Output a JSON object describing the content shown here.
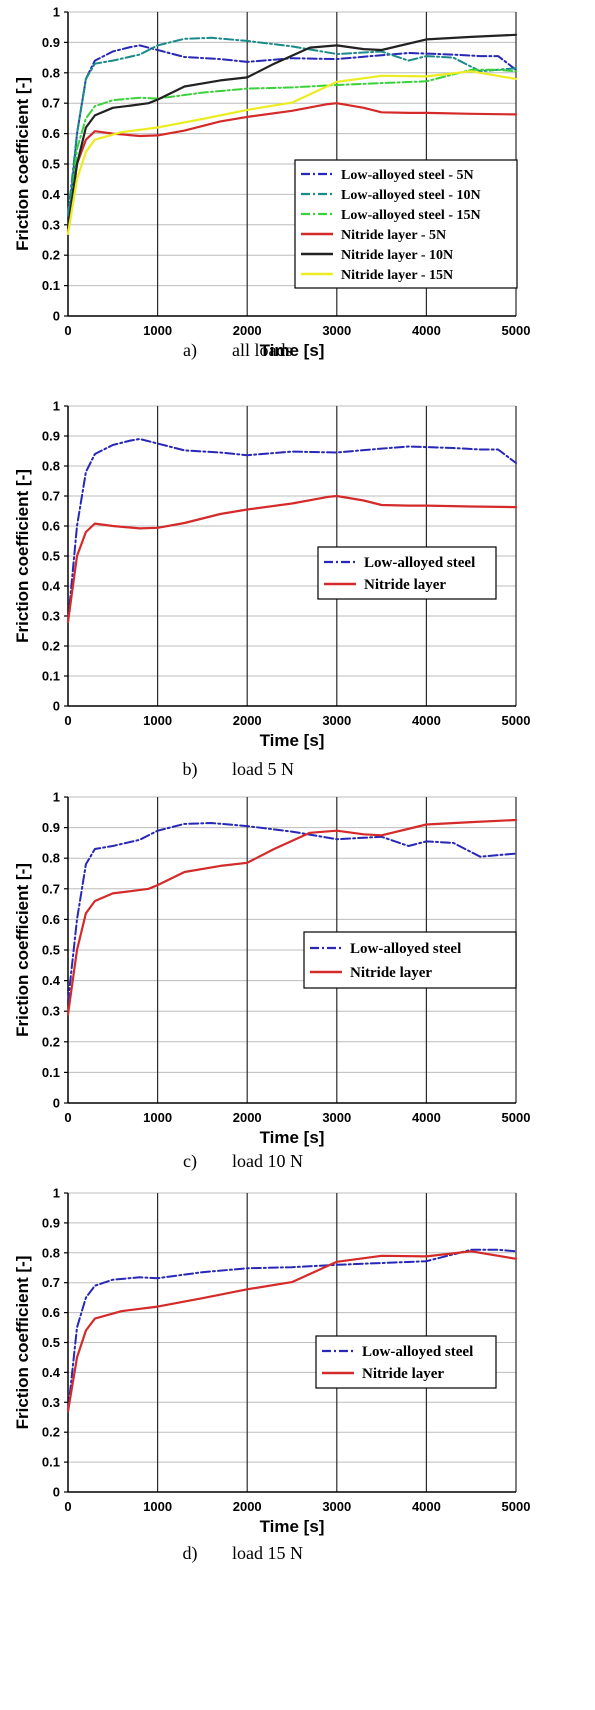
{
  "chart_data": [
    {
      "type": "line",
      "xlabel": "Time [s]",
      "ylabel": "Friction coefficient [-]",
      "xlim": [
        0,
        5000
      ],
      "ylim": [
        0,
        1
      ],
      "x_ticks": [
        "0",
        "1000",
        "2000",
        "3000",
        "4000",
        "5000"
      ],
      "y_ticks": [
        "0",
        "0.1",
        "0.2",
        "0.3",
        "0.4",
        "0.5",
        "0.6",
        "0.7",
        "0.8",
        "0.9",
        "1"
      ],
      "grid": true,
      "legend_position": "right",
      "caption_letter": "a)",
      "caption_text": "all loads",
      "series": [
        {
          "name": "Low-alloyed steel - 5N",
          "color": "#2727b8",
          "dash": "dashdot",
          "x": [
            0,
            100,
            200,
            300,
            500,
            700,
            800,
            1000,
            1300,
            1700,
            2000,
            2500,
            3000,
            3500,
            3800,
            4000,
            4300,
            4600,
            4800,
            5000
          ],
          "y": [
            0.28,
            0.6,
            0.78,
            0.84,
            0.87,
            0.885,
            0.89,
            0.875,
            0.852,
            0.845,
            0.836,
            0.848,
            0.845,
            0.858,
            0.865,
            0.863,
            0.86,
            0.855,
            0.855,
            0.81
          ]
        },
        {
          "name": "Low-alloyed steel - 10N",
          "color": "#1b8a8a",
          "dash": "dashdot",
          "x": [
            0,
            100,
            200,
            300,
            500,
            800,
            1000,
            1300,
            1600,
            2000,
            2500,
            3000,
            3500,
            3800,
            4000,
            4300,
            4600,
            4800,
            5000
          ],
          "y": [
            0.33,
            0.6,
            0.78,
            0.83,
            0.84,
            0.86,
            0.89,
            0.912,
            0.915,
            0.905,
            0.887,
            0.862,
            0.87,
            0.84,
            0.855,
            0.85,
            0.805,
            0.81,
            0.815
          ]
        },
        {
          "name": "Low-alloyed steel - 15N",
          "color": "#3ad23a",
          "dash": "dashdot",
          "x": [
            0,
            100,
            200,
            300,
            500,
            800,
            1000,
            1500,
            2000,
            2500,
            3000,
            3500,
            4000,
            4500,
            4800,
            5000
          ],
          "y": [
            0.27,
            0.55,
            0.65,
            0.69,
            0.71,
            0.718,
            0.715,
            0.735,
            0.748,
            0.752,
            0.76,
            0.766,
            0.772,
            0.81,
            0.81,
            0.805
          ]
        },
        {
          "name": "Nitride layer - 5N",
          "color": "#d42a2a",
          "dash": "solid",
          "x": [
            0,
            100,
            200,
            300,
            500,
            800,
            1000,
            1300,
            1700,
            2000,
            2500,
            2900,
            3000,
            3300,
            3500,
            3800,
            4000,
            4500,
            5000
          ],
          "y": [
            0.28,
            0.5,
            0.58,
            0.608,
            0.6,
            0.592,
            0.594,
            0.61,
            0.64,
            0.655,
            0.675,
            0.697,
            0.7,
            0.685,
            0.67,
            0.668,
            0.668,
            0.665,
            0.663
          ]
        },
        {
          "name": "Nitride layer - 10N",
          "color": "#222222",
          "dash": "solid",
          "x": [
            0,
            100,
            200,
            300,
            500,
            700,
            900,
            1000,
            1300,
            1700,
            2000,
            2300,
            2700,
            3000,
            3300,
            3500,
            4000,
            4500,
            5000
          ],
          "y": [
            0.29,
            0.5,
            0.62,
            0.66,
            0.685,
            0.692,
            0.7,
            0.712,
            0.755,
            0.775,
            0.785,
            0.83,
            0.883,
            0.89,
            0.878,
            0.875,
            0.91,
            0.918,
            0.925
          ]
        },
        {
          "name": "Nitride layer - 15N",
          "color": "#ecec22",
          "dash": "solid",
          "x": [
            0,
            100,
            200,
            300,
            600,
            1000,
            1500,
            2000,
            2500,
            3000,
            3500,
            4000,
            4500,
            5000
          ],
          "y": [
            0.27,
            0.45,
            0.54,
            0.58,
            0.605,
            0.62,
            0.648,
            0.678,
            0.702,
            0.77,
            0.79,
            0.788,
            0.805,
            0.78
          ]
        }
      ]
    },
    {
      "type": "line",
      "xlabel": "Time [s]",
      "ylabel": "Friction coefficient [-]",
      "xlim": [
        0,
        5000
      ],
      "ylim": [
        0,
        1
      ],
      "x_ticks": [
        "0",
        "1000",
        "2000",
        "3000",
        "4000",
        "5000"
      ],
      "y_ticks": [
        "0",
        "0.1",
        "0.2",
        "0.3",
        "0.4",
        "0.5",
        "0.6",
        "0.7",
        "0.8",
        "0.9",
        "1"
      ],
      "grid": true,
      "legend_position": "right",
      "caption_letter": "b)",
      "caption_text": "load 5 N",
      "series": [
        {
          "name": "Low-alloyed steel",
          "color": "#2727b8",
          "dash": "dashdot",
          "x": [
            0,
            100,
            200,
            300,
            500,
            700,
            800,
            1000,
            1300,
            1700,
            2000,
            2500,
            3000,
            3500,
            3800,
            4000,
            4300,
            4600,
            4800,
            5000
          ],
          "y": [
            0.28,
            0.6,
            0.78,
            0.84,
            0.87,
            0.885,
            0.89,
            0.875,
            0.852,
            0.845,
            0.836,
            0.848,
            0.845,
            0.858,
            0.865,
            0.863,
            0.86,
            0.855,
            0.855,
            0.81
          ]
        },
        {
          "name": "Nitride layer",
          "color": "#d42a2a",
          "dash": "solid",
          "x": [
            0,
            100,
            200,
            300,
            500,
            800,
            1000,
            1300,
            1700,
            2000,
            2500,
            2900,
            3000,
            3300,
            3500,
            3800,
            4000,
            4500,
            5000
          ],
          "y": [
            0.28,
            0.5,
            0.58,
            0.608,
            0.6,
            0.592,
            0.594,
            0.61,
            0.64,
            0.655,
            0.675,
            0.697,
            0.7,
            0.685,
            0.67,
            0.668,
            0.668,
            0.665,
            0.663
          ]
        }
      ]
    },
    {
      "type": "line",
      "xlabel": "Time [s]",
      "ylabel": "Friction coefficient [-]",
      "xlim": [
        0,
        5000
      ],
      "ylim": [
        0,
        1
      ],
      "x_ticks": [
        "0",
        "1000",
        "2000",
        "3000",
        "4000",
        "5000"
      ],
      "y_ticks": [
        "0",
        "0.1",
        "0.2",
        "0.3",
        "0.4",
        "0.5",
        "0.6",
        "0.7",
        "0.8",
        "0.9",
        "1"
      ],
      "grid": true,
      "legend_position": "right",
      "caption_letter": "c)",
      "caption_text": "load 10 N",
      "series": [
        {
          "name": "Low-alloyed steel",
          "color": "#2727b8",
          "dash": "dashdot",
          "x": [
            0,
            100,
            200,
            300,
            500,
            800,
            1000,
            1300,
            1600,
            2000,
            2500,
            3000,
            3500,
            3800,
            4000,
            4300,
            4600,
            4800,
            5000
          ],
          "y": [
            0.33,
            0.6,
            0.78,
            0.83,
            0.84,
            0.86,
            0.89,
            0.912,
            0.915,
            0.905,
            0.887,
            0.862,
            0.87,
            0.84,
            0.855,
            0.85,
            0.805,
            0.81,
            0.815
          ]
        },
        {
          "name": "Nitride layer",
          "color": "#d42a2a",
          "dash": "solid",
          "x": [
            0,
            100,
            200,
            300,
            500,
            700,
            900,
            1000,
            1300,
            1700,
            2000,
            2300,
            2700,
            3000,
            3300,
            3500,
            4000,
            4500,
            5000
          ],
          "y": [
            0.29,
            0.5,
            0.62,
            0.66,
            0.685,
            0.692,
            0.7,
            0.712,
            0.755,
            0.775,
            0.785,
            0.83,
            0.883,
            0.89,
            0.878,
            0.875,
            0.91,
            0.918,
            0.925
          ]
        }
      ]
    },
    {
      "type": "line",
      "xlabel": "Time [s]",
      "ylabel": "Friction coefficient [-]",
      "xlim": [
        0,
        5000
      ],
      "ylim": [
        0,
        1
      ],
      "x_ticks": [
        "0",
        "1000",
        "2000",
        "3000",
        "4000",
        "5000"
      ],
      "y_ticks": [
        "0",
        "0.1",
        "0.2",
        "0.3",
        "0.4",
        "0.5",
        "0.6",
        "0.7",
        "0.8",
        "0.9",
        "1"
      ],
      "grid": true,
      "legend_position": "right",
      "caption_letter": "d)",
      "caption_text": "load 15 N",
      "series": [
        {
          "name": "Low-alloyed steel",
          "color": "#2727b8",
          "dash": "dashdot",
          "x": [
            0,
            100,
            200,
            300,
            500,
            800,
            1000,
            1500,
            2000,
            2500,
            3000,
            3500,
            4000,
            4500,
            4800,
            5000
          ],
          "y": [
            0.27,
            0.55,
            0.65,
            0.69,
            0.71,
            0.718,
            0.715,
            0.735,
            0.748,
            0.752,
            0.76,
            0.766,
            0.772,
            0.81,
            0.81,
            0.805
          ]
        },
        {
          "name": "Nitride layer",
          "color": "#d42a2a",
          "dash": "solid",
          "x": [
            0,
            100,
            200,
            300,
            600,
            1000,
            1500,
            2000,
            2500,
            3000,
            3500,
            4000,
            4500,
            5000
          ],
          "y": [
            0.27,
            0.45,
            0.54,
            0.58,
            0.605,
            0.62,
            0.648,
            0.678,
            0.702,
            0.77,
            0.79,
            0.788,
            0.805,
            0.78
          ]
        }
      ]
    }
  ]
}
